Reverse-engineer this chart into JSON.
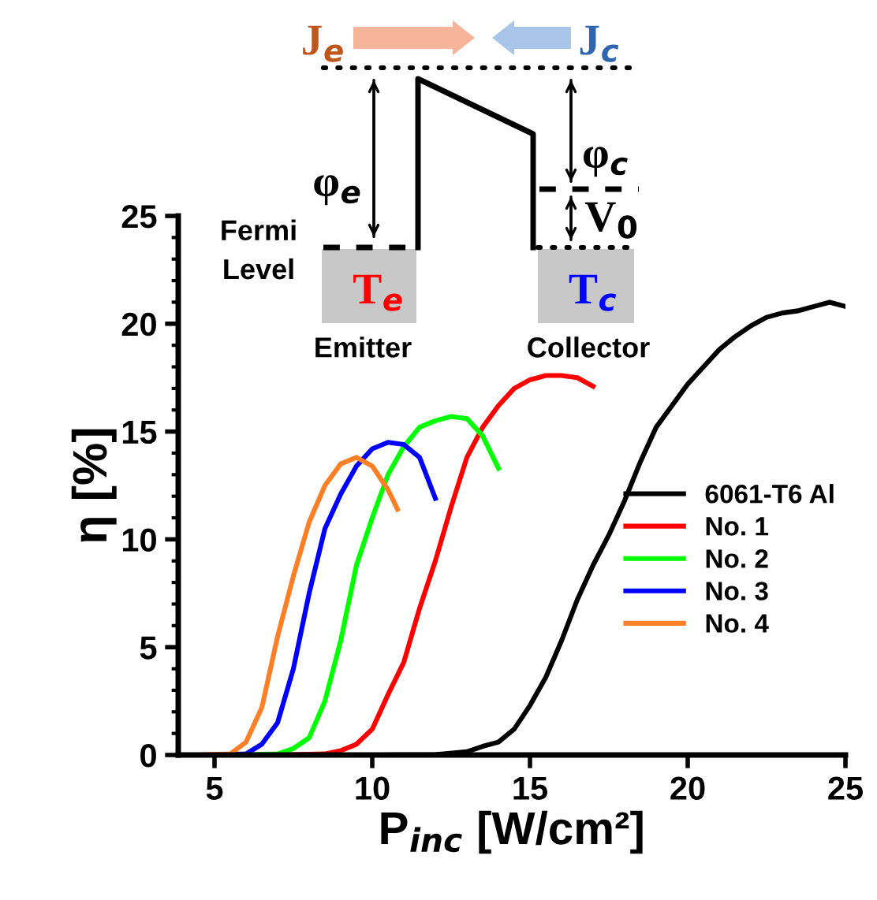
{
  "chart_data": {
    "type": "line",
    "xlabel": "P$_{inc}$ [W/cm²]",
    "ylabel": "η [%]",
    "xlim": [
      3.85,
      25
    ],
    "ylim": [
      0,
      25
    ],
    "xticks": [
      5,
      10,
      15,
      20,
      25
    ],
    "yticks": [
      0,
      5,
      10,
      15,
      20,
      25
    ],
    "grid": false,
    "legend": "right",
    "marker": "none",
    "line_style": "solid",
    "annotations": [
      "J$_{e}$",
      "J$_{c}$",
      "φ$_{e}$",
      "φ$_{c}$",
      "V$_{0}$",
      "Fermi\nLevel",
      "T$_{e}$",
      "T$_{c}$",
      "Emitter",
      "Collector"
    ],
    "series": [
      {
        "name": "6061-T6 Al",
        "color": "#000000",
        "x": [
          10.3,
          12,
          13,
          13.5,
          14,
          14.5,
          15,
          15.5,
          16,
          16.5,
          17,
          17.5,
          18,
          18.5,
          19,
          19.5,
          20,
          20.5,
          21,
          21.5,
          22,
          22.5,
          23,
          23.5,
          24,
          24.5,
          25
        ],
        "values": [
          0,
          0.02,
          0.15,
          0.4,
          0.6,
          1.2,
          2.3,
          3.6,
          5.3,
          7.2,
          8.8,
          10.2,
          11.8,
          13.6,
          15.2,
          16.2,
          17.2,
          18.0,
          18.8,
          19.4,
          19.9,
          20.3,
          20.5,
          20.6,
          20.8,
          21.0,
          20.8
        ]
      },
      {
        "name": "No. 1",
        "color": "#ff0000",
        "x": [
          7,
          8.5,
          9,
          9.5,
          10,
          10.5,
          11,
          11.5,
          12,
          12.5,
          13,
          13.5,
          14,
          14.5,
          15,
          15.5,
          16,
          16.5,
          17
        ],
        "values": [
          0,
          0.05,
          0.2,
          0.5,
          1.2,
          2.8,
          4.3,
          6.8,
          9,
          11.5,
          13.8,
          15.2,
          16.2,
          17.0,
          17.4,
          17.6,
          17.6,
          17.5,
          17.1
        ]
      },
      {
        "name": "No. 2",
        "color": "#00ff00",
        "x": [
          5.7,
          7,
          7.5,
          8,
          8.5,
          9,
          9.5,
          10,
          10.5,
          11,
          11.5,
          12,
          12.5,
          13,
          13.5,
          14
        ],
        "values": [
          0,
          0.05,
          0.3,
          0.8,
          2.5,
          5.3,
          8.8,
          11,
          13,
          14.3,
          15.2,
          15.5,
          15.7,
          15.6,
          14.8,
          13.3
        ]
      },
      {
        "name": "No. 3",
        "color": "#0000ff",
        "x": [
          5,
          6,
          6.5,
          7,
          7.5,
          8,
          8.5,
          9,
          9.5,
          10,
          10.5,
          11,
          11.5,
          12
        ],
        "values": [
          0,
          0.05,
          0.5,
          1.5,
          4,
          7.5,
          10.5,
          12.1,
          13.4,
          14.2,
          14.5,
          14.4,
          13.8,
          11.9
        ]
      },
      {
        "name": "No. 4",
        "color": "#ff7f27",
        "x": [
          4.5,
          5.5,
          6,
          6.5,
          7,
          7.5,
          8,
          8.5,
          9,
          9.5,
          10,
          10.5,
          10.8
        ],
        "values": [
          0,
          0.05,
          0.6,
          2.2,
          5.5,
          8.3,
          10.8,
          12.5,
          13.5,
          13.8,
          13.4,
          12.3,
          11.4
        ]
      }
    ]
  }
}
